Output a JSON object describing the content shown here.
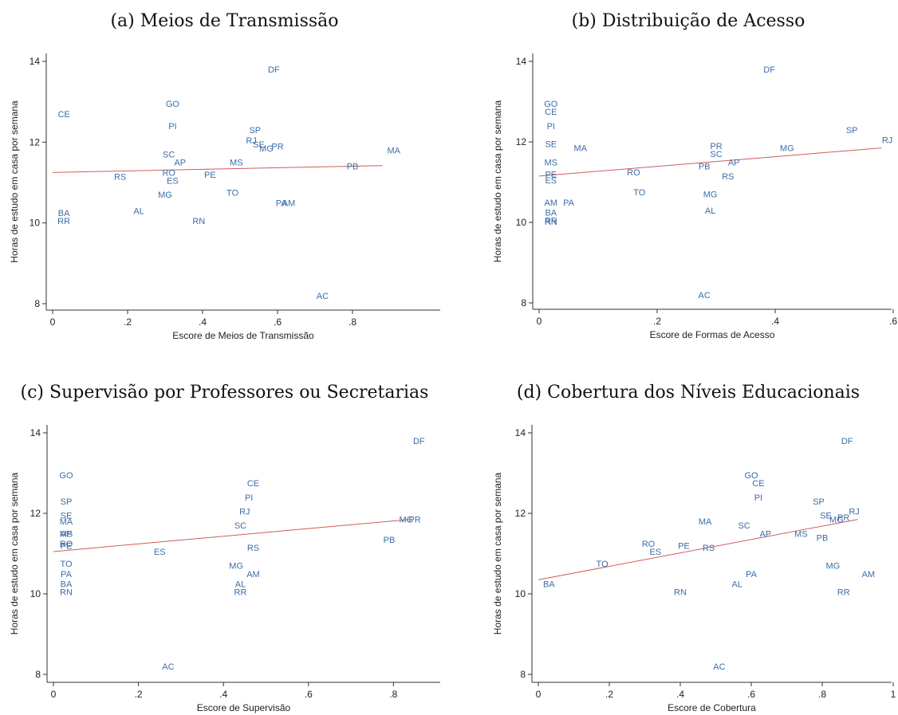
{
  "chart_data": [
    {
      "type": "scatter",
      "title": "(a) Meios de Transmissão",
      "xlabel": "Escore de Meios de Transmissão",
      "ylabel": "Horas de estudo em casa por semana",
      "xlim": [
        0,
        0.9
      ],
      "ylim": [
        8,
        14
      ],
      "xticks": [
        0,
        0.2,
        0.4,
        0.6,
        0.8
      ],
      "xtick_labels": [
        "0",
        ".2",
        ".4",
        ".6",
        ".8"
      ],
      "yticks": [
        8,
        10,
        12,
        14
      ],
      "grid": false,
      "fit_line": [
        [
          0,
          11.25
        ],
        [
          0.88,
          11.42
        ]
      ],
      "points": [
        {
          "label": "DF",
          "x": 0.59,
          "y": 13.8
        },
        {
          "label": "CE",
          "x": 0.03,
          "y": 12.7
        },
        {
          "label": "GO",
          "x": 0.32,
          "y": 12.95
        },
        {
          "label": "PI",
          "x": 0.32,
          "y": 12.4
        },
        {
          "label": "SP",
          "x": 0.54,
          "y": 12.3
        },
        {
          "label": "RJ",
          "x": 0.53,
          "y": 12.05
        },
        {
          "label": "SE",
          "x": 0.55,
          "y": 11.95
        },
        {
          "label": "MG",
          "x": 0.57,
          "y": 11.85
        },
        {
          "label": "PR",
          "x": 0.6,
          "y": 11.9
        },
        {
          "label": "SC",
          "x": 0.31,
          "y": 11.7
        },
        {
          "label": "AP",
          "x": 0.34,
          "y": 11.5
        },
        {
          "label": "MS",
          "x": 0.49,
          "y": 11.5
        },
        {
          "label": "MA",
          "x": 0.91,
          "y": 11.8
        },
        {
          "label": "PB",
          "x": 0.8,
          "y": 11.4
        },
        {
          "label": "RS",
          "x": 0.18,
          "y": 11.15
        },
        {
          "label": "RO",
          "x": 0.31,
          "y": 11.25
        },
        {
          "label": "PE",
          "x": 0.42,
          "y": 11.2
        },
        {
          "label": "ES",
          "x": 0.32,
          "y": 11.05
        },
        {
          "label": "MG",
          "x": 0.3,
          "y": 10.7
        },
        {
          "label": "TO",
          "x": 0.48,
          "y": 10.75
        },
        {
          "label": "PA",
          "x": 0.61,
          "y": 10.5
        },
        {
          "label": "AM",
          "x": 0.63,
          "y": 10.5
        },
        {
          "label": "BA",
          "x": 0.03,
          "y": 10.25
        },
        {
          "label": "RR",
          "x": 0.03,
          "y": 10.05
        },
        {
          "label": "AL",
          "x": 0.23,
          "y": 10.3
        },
        {
          "label": "RN",
          "x": 0.39,
          "y": 10.05
        },
        {
          "label": "AC",
          "x": 0.72,
          "y": 8.2
        }
      ]
    },
    {
      "type": "scatter",
      "title": "(b) Distribuição de Acesso",
      "xlabel": "Escore de Formas de Acesso",
      "ylabel": "Horas de estudo em casa por semana",
      "xlim": [
        0,
        0.6
      ],
      "ylim": [
        8,
        14
      ],
      "xticks": [
        0,
        0.2,
        0.4,
        0.6
      ],
      "xtick_labels": [
        "0",
        ".2",
        ".4",
        ".6"
      ],
      "yticks": [
        8,
        10,
        12,
        14
      ],
      "grid": false,
      "fit_line": [
        [
          0,
          11.15
        ],
        [
          0.58,
          11.85
        ]
      ],
      "points": [
        {
          "label": "DF",
          "x": 0.39,
          "y": 13.8
        },
        {
          "label": "GO",
          "x": 0.02,
          "y": 12.95
        },
        {
          "label": "CE",
          "x": 0.02,
          "y": 12.75
        },
        {
          "label": "PI",
          "x": 0.02,
          "y": 12.4
        },
        {
          "label": "SP",
          "x": 0.53,
          "y": 12.3
        },
        {
          "label": "RJ",
          "x": 0.59,
          "y": 12.05
        },
        {
          "label": "SE",
          "x": 0.02,
          "y": 11.95
        },
        {
          "label": "MA",
          "x": 0.07,
          "y": 11.85
        },
        {
          "label": "PR",
          "x": 0.3,
          "y": 11.9
        },
        {
          "label": "MG",
          "x": 0.42,
          "y": 11.85
        },
        {
          "label": "SC",
          "x": 0.3,
          "y": 11.7
        },
        {
          "label": "MS",
          "x": 0.02,
          "y": 11.5
        },
        {
          "label": "AP",
          "x": 0.33,
          "y": 11.5
        },
        {
          "label": "PB",
          "x": 0.28,
          "y": 11.4
        },
        {
          "label": "RO",
          "x": 0.16,
          "y": 11.25
        },
        {
          "label": "PE",
          "x": 0.02,
          "y": 11.2
        },
        {
          "label": "ES",
          "x": 0.02,
          "y": 11.05
        },
        {
          "label": "RS",
          "x": 0.32,
          "y": 11.15
        },
        {
          "label": "TO",
          "x": 0.17,
          "y": 10.75
        },
        {
          "label": "MG",
          "x": 0.29,
          "y": 10.7
        },
        {
          "label": "AM",
          "x": 0.02,
          "y": 10.5
        },
        {
          "label": "PA",
          "x": 0.05,
          "y": 10.5
        },
        {
          "label": "BA",
          "x": 0.02,
          "y": 10.25
        },
        {
          "label": "AL",
          "x": 0.29,
          "y": 10.3
        },
        {
          "label": "RR",
          "x": 0.02,
          "y": 10.05
        },
        {
          "label": "RN",
          "x": 0.02,
          "y": 10.02
        },
        {
          "label": "AC",
          "x": 0.28,
          "y": 8.2
        }
      ]
    },
    {
      "type": "scatter",
      "title": "(c) Supervisão por Professores ou Secretarias",
      "xlabel": "Escore de Supervisão",
      "ylabel": "Horas de estudo em casa por semana",
      "xlim": [
        0,
        0.85
      ],
      "ylim": [
        8,
        14
      ],
      "xticks": [
        0,
        0.2,
        0.4,
        0.6,
        0.8
      ],
      "xtick_labels": [
        "0",
        ".2",
        ".4",
        ".6",
        ".8"
      ],
      "yticks": [
        8,
        10,
        12,
        14
      ],
      "grid": false,
      "fit_line": [
        [
          0,
          11.05
        ],
        [
          0.84,
          11.85
        ]
      ],
      "points": [
        {
          "label": "DF",
          "x": 0.86,
          "y": 13.8
        },
        {
          "label": "GO",
          "x": 0.03,
          "y": 12.95
        },
        {
          "label": "CE",
          "x": 0.47,
          "y": 12.75
        },
        {
          "label": "PI",
          "x": 0.46,
          "y": 12.4
        },
        {
          "label": "SP",
          "x": 0.03,
          "y": 12.3
        },
        {
          "label": "RJ",
          "x": 0.45,
          "y": 12.05
        },
        {
          "label": "SE",
          "x": 0.03,
          "y": 11.95
        },
        {
          "label": "MA",
          "x": 0.03,
          "y": 11.8
        },
        {
          "label": "MG",
          "x": 0.83,
          "y": 11.85
        },
        {
          "label": "PR",
          "x": 0.85,
          "y": 11.85
        },
        {
          "label": "SC",
          "x": 0.44,
          "y": 11.7
        },
        {
          "label": "AP",
          "x": 0.03,
          "y": 11.5
        },
        {
          "label": "MS",
          "x": 0.03,
          "y": 11.5
        },
        {
          "label": "PB",
          "x": 0.79,
          "y": 11.35
        },
        {
          "label": "RO",
          "x": 0.03,
          "y": 11.25
        },
        {
          "label": "PE",
          "x": 0.03,
          "y": 11.2
        },
        {
          "label": "RS",
          "x": 0.47,
          "y": 11.15
        },
        {
          "label": "ES",
          "x": 0.25,
          "y": 11.05
        },
        {
          "label": "TO",
          "x": 0.03,
          "y": 10.75
        },
        {
          "label": "MG",
          "x": 0.43,
          "y": 10.7
        },
        {
          "label": "PA",
          "x": 0.03,
          "y": 10.5
        },
        {
          "label": "AM",
          "x": 0.47,
          "y": 10.5
        },
        {
          "label": "BA",
          "x": 0.03,
          "y": 10.25
        },
        {
          "label": "AL",
          "x": 0.44,
          "y": 10.25
        },
        {
          "label": "RN",
          "x": 0.03,
          "y": 10.05
        },
        {
          "label": "RR",
          "x": 0.44,
          "y": 10.05
        },
        {
          "label": "AC",
          "x": 0.27,
          "y": 8.2
        }
      ]
    },
    {
      "type": "scatter",
      "title": "(d) Cobertura dos Níveis Educacionais",
      "xlabel": "Escore de Cobertura",
      "ylabel": "Horas de estudo em casa por semana",
      "xlim": [
        0,
        1
      ],
      "ylim": [
        8,
        14
      ],
      "xticks": [
        0,
        0.2,
        0.4,
        0.6,
        0.8,
        1
      ],
      "xtick_labels": [
        "0",
        ".2",
        ".4",
        ".6",
        ".8",
        "1"
      ],
      "yticks": [
        8,
        10,
        12,
        14
      ],
      "grid": false,
      "fit_line": [
        [
          0,
          10.35
        ],
        [
          0.9,
          11.85
        ]
      ],
      "points": [
        {
          "label": "DF",
          "x": 0.87,
          "y": 13.8
        },
        {
          "label": "GO",
          "x": 0.6,
          "y": 12.95
        },
        {
          "label": "CE",
          "x": 0.62,
          "y": 12.75
        },
        {
          "label": "PI",
          "x": 0.62,
          "y": 12.4
        },
        {
          "label": "SP",
          "x": 0.79,
          "y": 12.3
        },
        {
          "label": "RJ",
          "x": 0.89,
          "y": 12.05
        },
        {
          "label": "SE",
          "x": 0.81,
          "y": 11.95
        },
        {
          "label": "MG",
          "x": 0.84,
          "y": 11.85
        },
        {
          "label": "PR",
          "x": 0.86,
          "y": 11.9
        },
        {
          "label": "MA",
          "x": 0.47,
          "y": 11.8
        },
        {
          "label": "SC",
          "x": 0.58,
          "y": 11.7
        },
        {
          "label": "AP",
          "x": 0.64,
          "y": 11.5
        },
        {
          "label": "MS",
          "x": 0.74,
          "y": 11.5
        },
        {
          "label": "PB",
          "x": 0.8,
          "y": 11.4
        },
        {
          "label": "RO",
          "x": 0.31,
          "y": 11.25
        },
        {
          "label": "ES",
          "x": 0.33,
          "y": 11.05
        },
        {
          "label": "PE",
          "x": 0.41,
          "y": 11.2
        },
        {
          "label": "RS",
          "x": 0.48,
          "y": 11.15
        },
        {
          "label": "TO",
          "x": 0.18,
          "y": 10.75
        },
        {
          "label": "MG",
          "x": 0.83,
          "y": 10.7
        },
        {
          "label": "PA",
          "x": 0.6,
          "y": 10.5
        },
        {
          "label": "AM",
          "x": 0.93,
          "y": 10.5
        },
        {
          "label": "AL",
          "x": 0.56,
          "y": 10.25
        },
        {
          "label": "BA",
          "x": 0.03,
          "y": 10.25
        },
        {
          "label": "RN",
          "x": 0.4,
          "y": 10.05
        },
        {
          "label": "RR",
          "x": 0.86,
          "y": 10.05
        },
        {
          "label": "AC",
          "x": 0.51,
          "y": 8.2
        }
      ]
    }
  ]
}
